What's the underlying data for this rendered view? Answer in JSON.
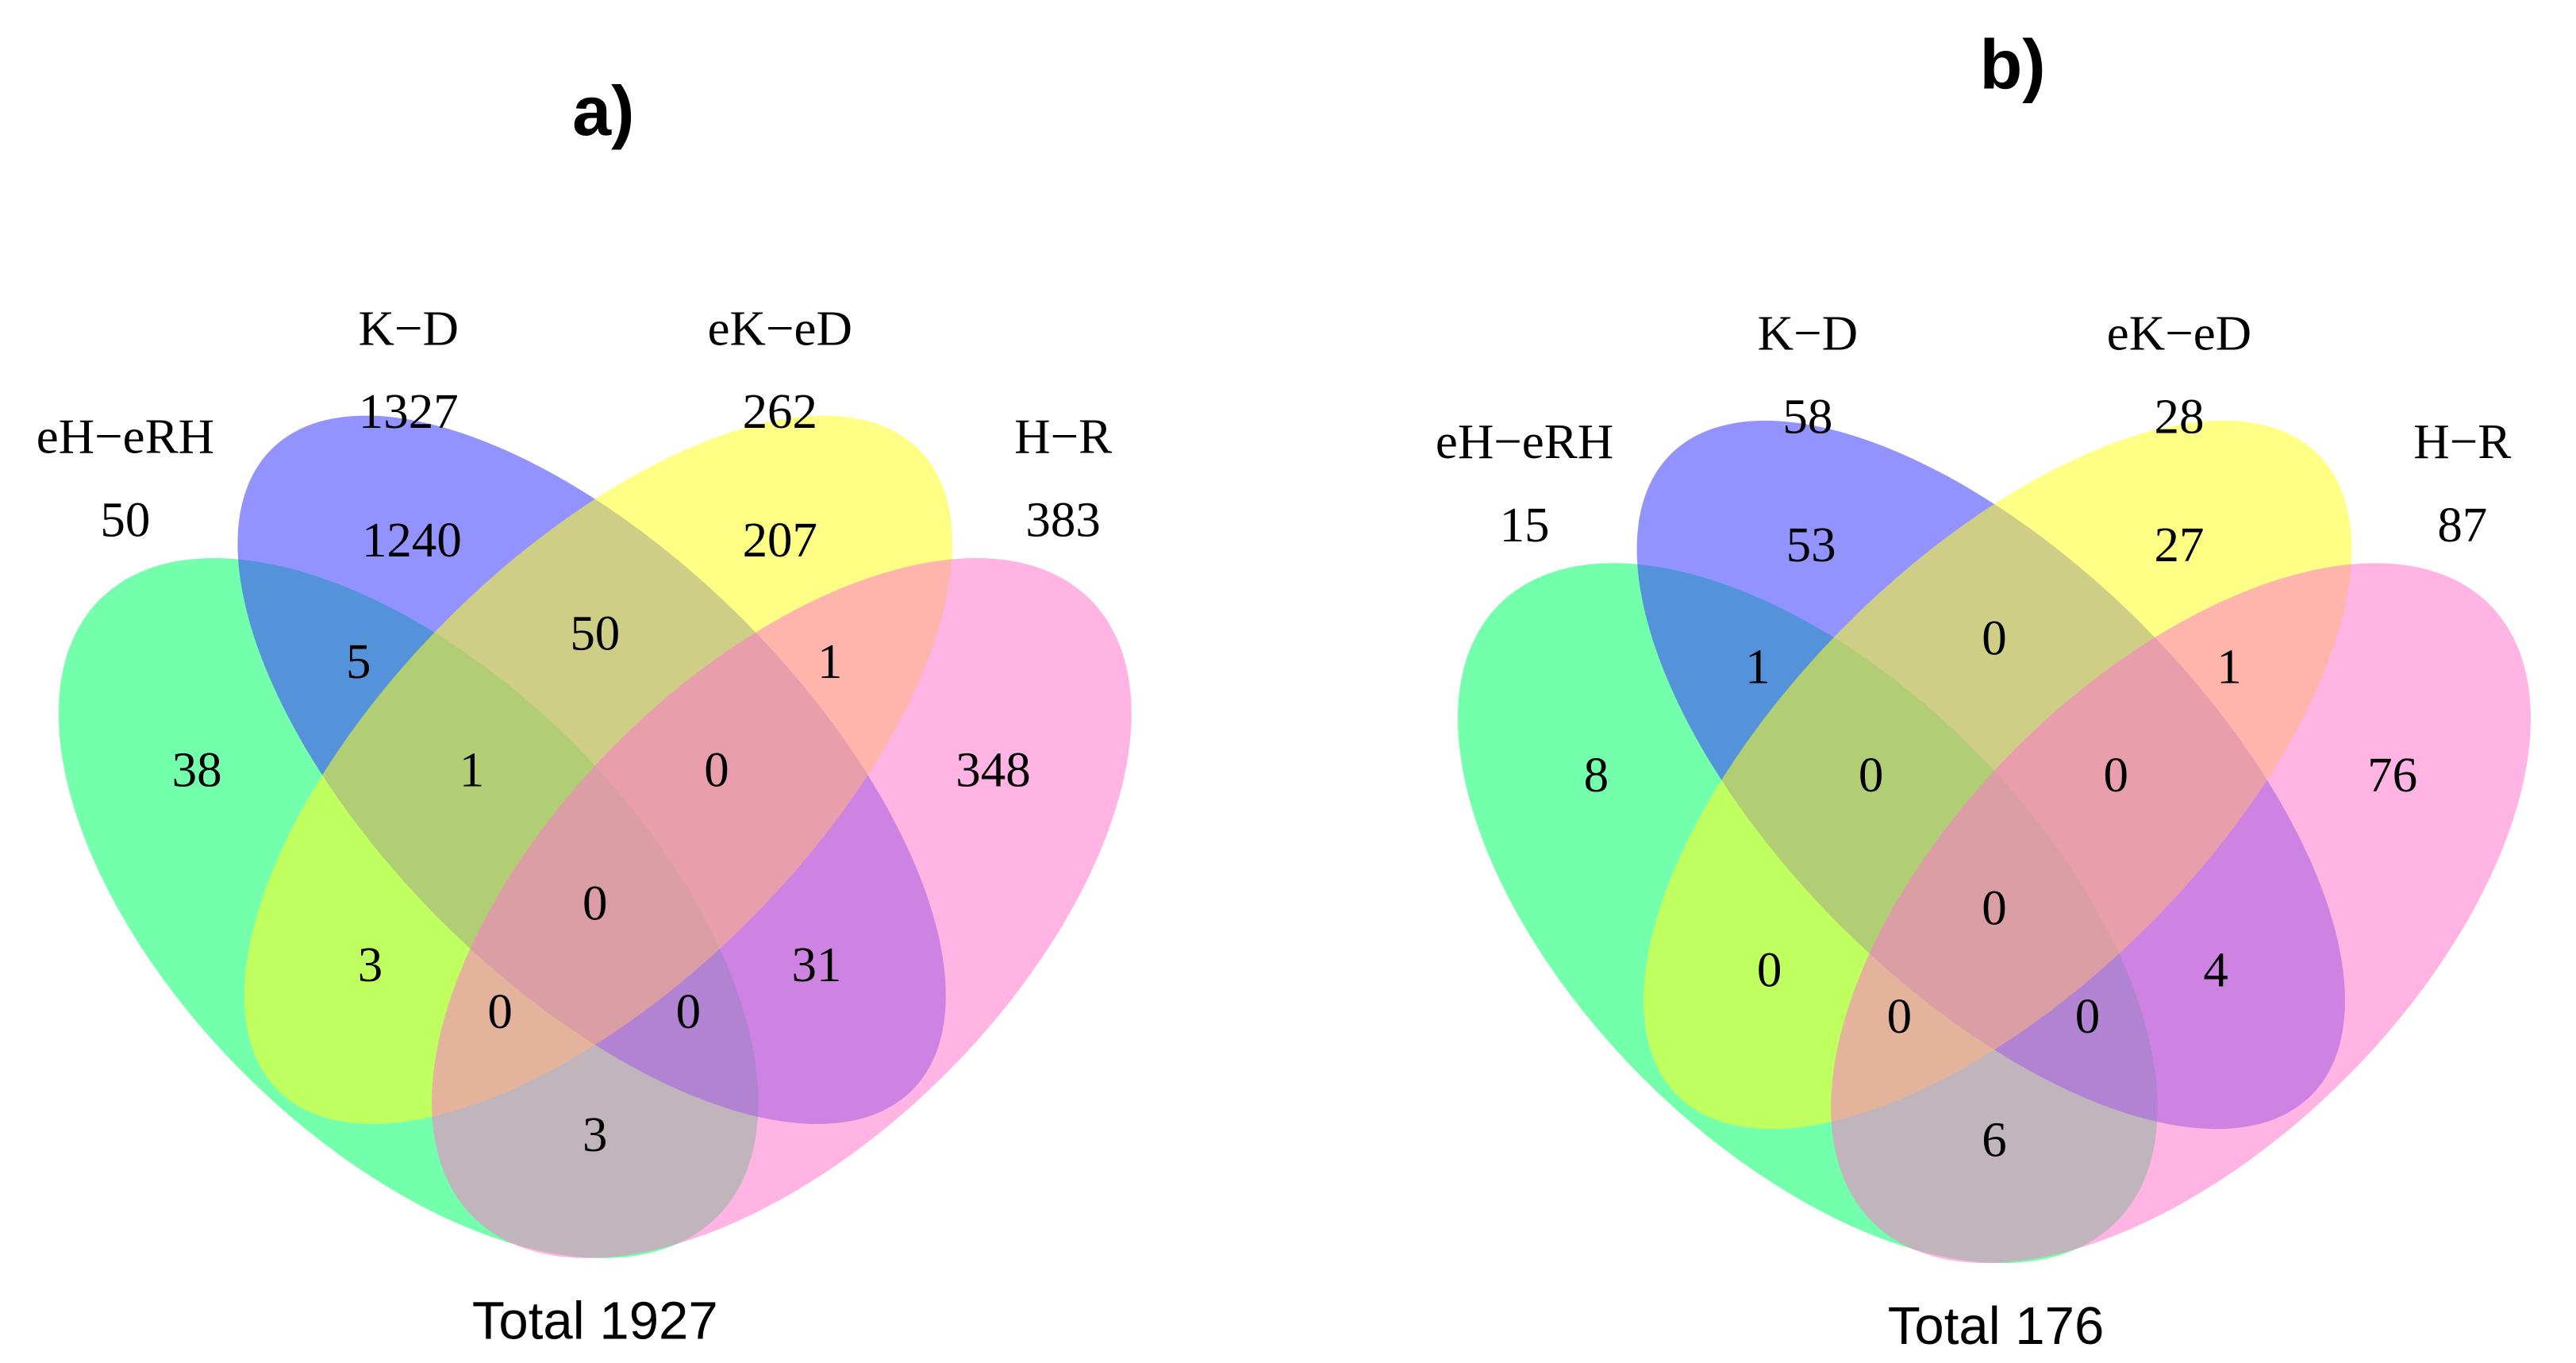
{
  "chart_data": [
    {
      "type": "venn",
      "title": "a)",
      "total_label": "Total 1927",
      "sets": [
        {
          "name": "eH−eRH",
          "size": 50,
          "color": "#00ff66"
        },
        {
          "name": "K−D",
          "size": 1327,
          "color": "#3a3aff"
        },
        {
          "name": "eK−eD",
          "size": 262,
          "color": "#ffff22"
        },
        {
          "name": "H−R",
          "size": 383,
          "color": "#ff77cc"
        }
      ],
      "values": [
        38,
        1240,
        207,
        348,
        5,
        50,
        1,
        1,
        0,
        0,
        3,
        0,
        0,
        31,
        3
      ]
    },
    {
      "type": "venn",
      "title": "b)",
      "total_label": "Total 176",
      "sets": [
        {
          "name": "eH−eRH",
          "size": 15,
          "color": "#00ff66"
        },
        {
          "name": "K−D",
          "size": 58,
          "color": "#3a3aff"
        },
        {
          "name": "eK−eD",
          "size": 28,
          "color": "#ffff22"
        },
        {
          "name": "H−R",
          "size": 87,
          "color": "#ff77cc"
        }
      ],
      "values": [
        8,
        53,
        27,
        76,
        1,
        0,
        1,
        0,
        0,
        0,
        0,
        0,
        0,
        4,
        6
      ]
    }
  ]
}
